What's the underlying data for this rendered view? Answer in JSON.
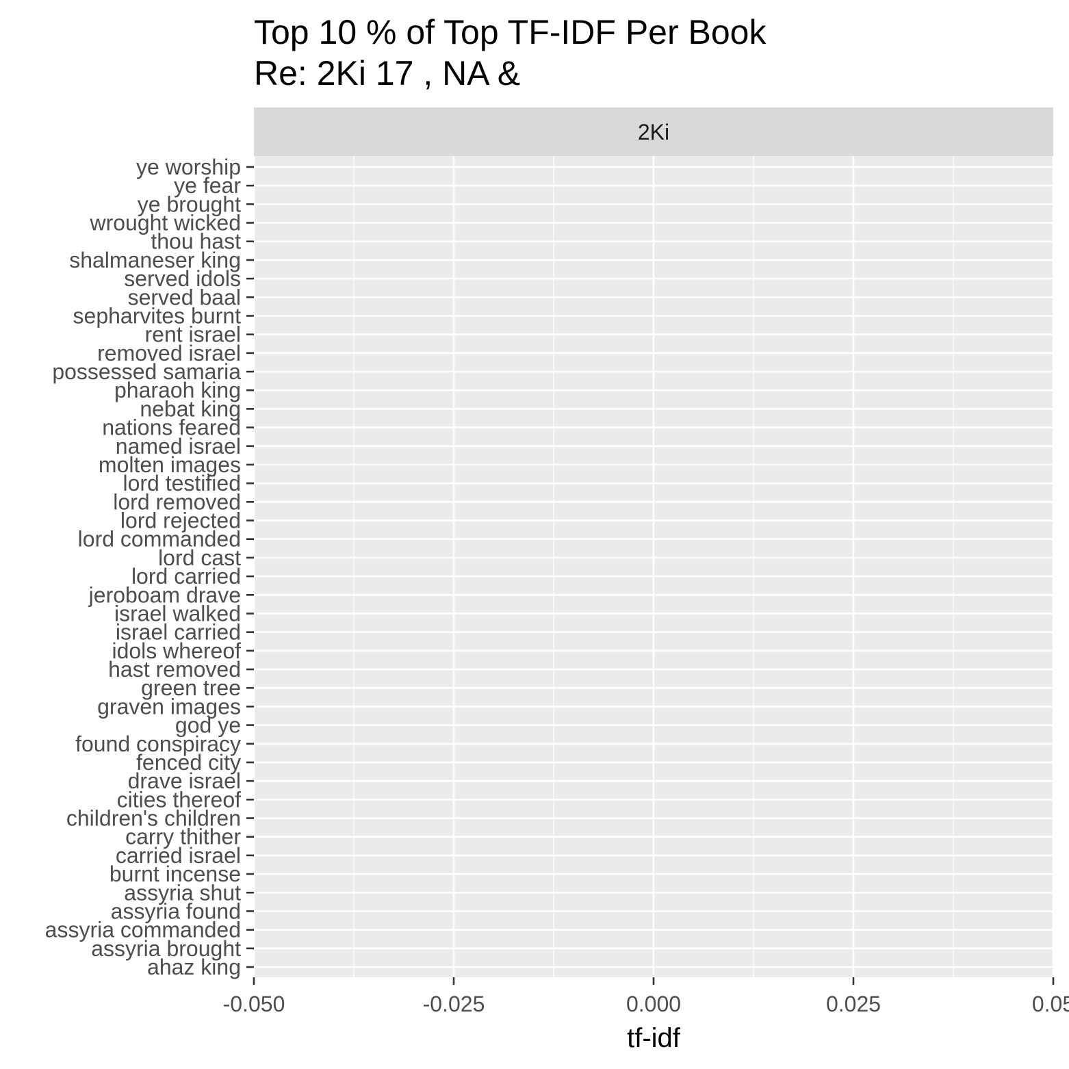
{
  "chart_data": {
    "type": "bar",
    "title": "Top 10 % of Top TF-IDF Per Book",
    "subtitle": "Re: 2Ki 17 , NA &",
    "facet": "2Ki",
    "xlabel": "tf-idf",
    "ylabel": "",
    "orientation": "horizontal",
    "xlim": [
      -0.05,
      0.05
    ],
    "x_ticks": [
      -0.05,
      -0.025,
      0,
      0.025,
      0.05
    ],
    "x_tick_labels": [
      "-0.050",
      "-0.025",
      "0.000",
      "0.025",
      "0.05"
    ],
    "grid": true,
    "categories": [
      "ye worship",
      "ye fear",
      "ye brought",
      "wrought wicked",
      "thou hast",
      "shalmaneser king",
      "served idols",
      "served baal",
      "sepharvites burnt",
      "rent israel",
      "removed israel",
      "possessed samaria",
      "pharaoh king",
      "nebat king",
      "nations feared",
      "named israel",
      "molten images",
      "lord testified",
      "lord removed",
      "lord rejected",
      "lord commanded",
      "lord cast",
      "lord carried",
      "jeroboam drave",
      "israel walked",
      "israel carried",
      "idols whereof",
      "hast removed",
      "green tree",
      "graven images",
      "god ye",
      "found conspiracy",
      "fenced city",
      "drave israel",
      "cities thereof",
      "children's children",
      "carry thither",
      "carried israel",
      "burnt incense",
      "assyria shut",
      "assyria found",
      "assyria commanded",
      "assyria brought",
      "ahaz king"
    ],
    "values": [
      0,
      0,
      0,
      0,
      0,
      0,
      0,
      0,
      0,
      0,
      0,
      0,
      0,
      0,
      0,
      0,
      0,
      0,
      0,
      0,
      0,
      0,
      0,
      0,
      0,
      0,
      0,
      0,
      0,
      0,
      0,
      0,
      0,
      0,
      0,
      0,
      0,
      0,
      0,
      0,
      0,
      0,
      0,
      0
    ]
  }
}
